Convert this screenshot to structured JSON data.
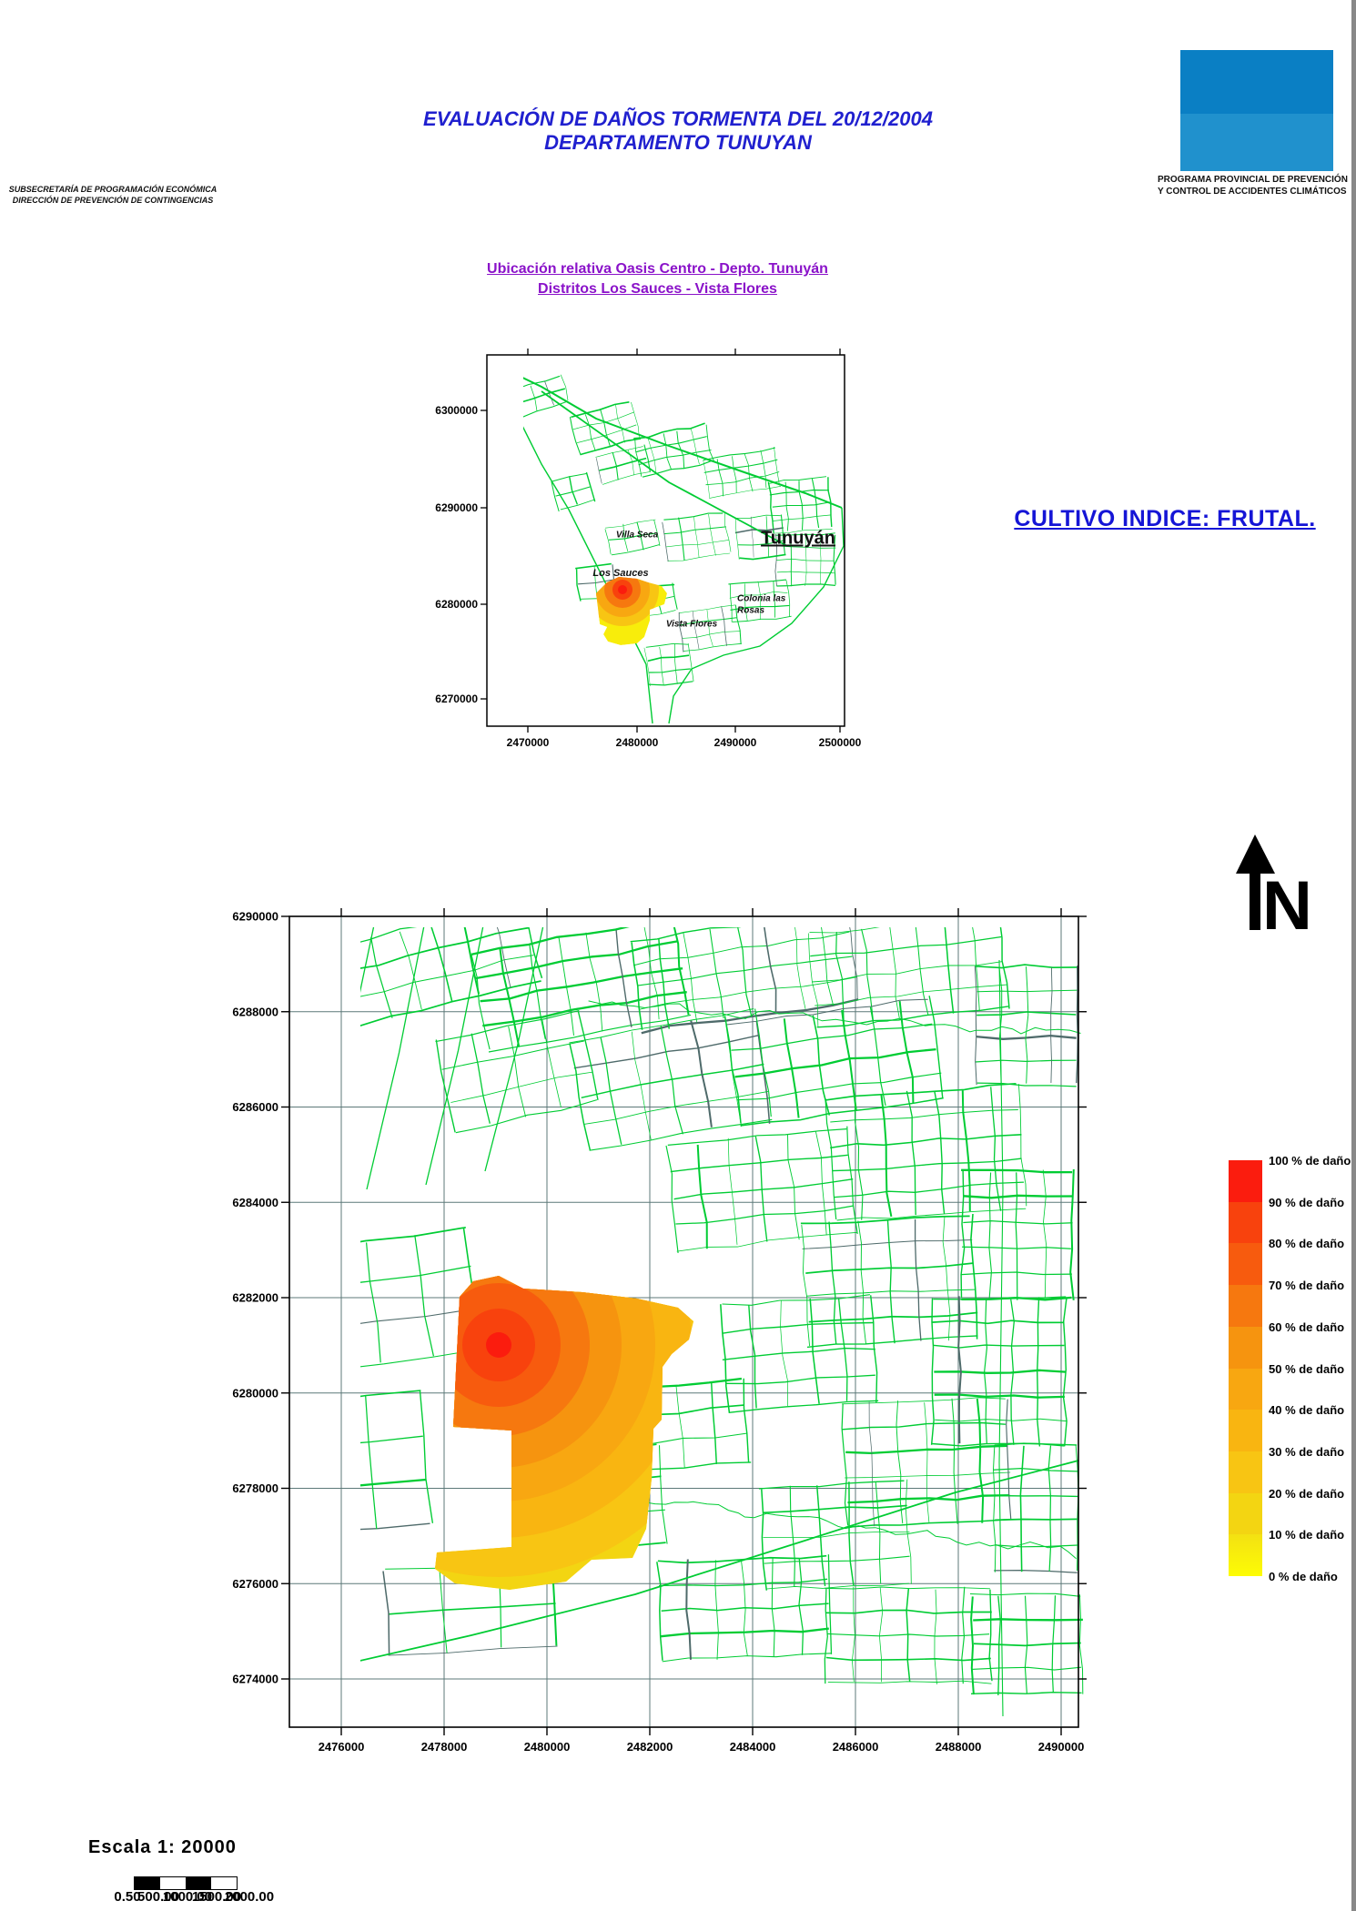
{
  "header": {
    "title_line1": "EVALUACIÓN DE DAÑOS TORMENTA DEL 20/12/2004",
    "title_line2": "DEPARTAMENTO TUNUYAN",
    "agency_line1": "SUBSECRETARÍA DE PROGRAMACIÓN ECONÓMICA",
    "agency_line2": "DIRECCIÓN DE PREVENCIÓN DE CONTINGENCIAS",
    "program_line1": "PROGRAMA PROVINCIAL DE PREVENCIÓN",
    "program_line2": "Y CONTROL DE ACCIDENTES CLIMÁTICOS"
  },
  "overview_map": {
    "subtitle_line1": "Ubicación relativa Oasis Centro - Depto. Tunuyán",
    "subtitle_line2": "Distritos Los Sauces - Vista Flores",
    "x_ticks": [
      "2470000",
      "2480000",
      "2490000",
      "2500000"
    ],
    "y_ticks": [
      "6300000",
      "6290000",
      "6280000",
      "6270000"
    ],
    "places": {
      "villa_seca": "Villa Seca",
      "los_sauces": "Los Sauces",
      "tunuyan": "Tunuyán",
      "colonia_line1": "Colonia las",
      "colonia_line2": "Rosas",
      "vista_flores": "Vista Flores"
    }
  },
  "crop_index_label": "CULTIVO INDICE: FRUTAL.",
  "north_label": "N",
  "main_map": {
    "x_ticks": [
      "2476000",
      "2478000",
      "2480000",
      "2482000",
      "2484000",
      "2486000",
      "2488000",
      "2490000"
    ],
    "y_ticks": [
      "6290000",
      "6288000",
      "6286000",
      "6284000",
      "6282000",
      "6280000",
      "6278000",
      "6276000",
      "6274000"
    ]
  },
  "legend": {
    "labels": [
      "100 % de daño",
      "90 % de daño",
      "80 % de daño",
      "70 % de daño",
      "60 % de daño",
      "50 % de daño",
      "40 % de daño",
      "30 % de daño",
      "20 % de daño",
      "10 % de daño",
      "0 % de daño"
    ],
    "band_colors": [
      "#fb1c0e",
      "#f8420d",
      "#f75b0e",
      "#f6780f",
      "#f6940f",
      "#f8a711",
      "#f9b511",
      "#f8c513",
      "#f3d512",
      "#f7e911"
    ]
  },
  "scale": {
    "label": "Escala 1: 20000",
    "bar_numbers": [
      "0.50",
      "500.00",
      "1000.00",
      "1500.00",
      "2000.00"
    ]
  },
  "colors": {
    "title_blue": "#2020cf",
    "subtitle_purple": "#8a12c9",
    "crop_index_blue": "#1515d6",
    "parcel_green": "#00cc33",
    "grid_gray": "#5c7878",
    "logo_blue_top": "#0a7fc4",
    "logo_blue_bottom": "#2091cd"
  }
}
